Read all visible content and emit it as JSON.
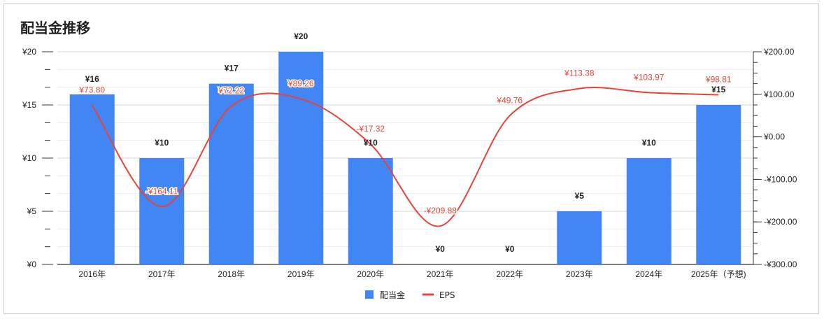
{
  "chart_data": {
    "type": "bar",
    "title": "配当金推移",
    "categories": [
      "2016年",
      "2017年",
      "2018年",
      "2019年",
      "2020年",
      "2021年",
      "2022年",
      "2023年",
      "2024年",
      "2025年（予想)"
    ],
    "series": [
      {
        "name": "配当金",
        "type": "bar",
        "axis": "left",
        "color": "#4285f4",
        "values": [
          16,
          10,
          17,
          20,
          10,
          0,
          0,
          5,
          10,
          15
        ],
        "labels": [
          "¥16",
          "¥10",
          "¥17",
          "¥20",
          "¥10",
          "¥0",
          "¥0",
          "¥5",
          "¥10",
          "¥15"
        ]
      },
      {
        "name": "EPS",
        "type": "line",
        "axis": "right",
        "color": "#ea4335",
        "smooth": true,
        "values": [
          73.8,
          -164.11,
          72.22,
          89.26,
          -17.32,
          -209.88,
          49.76,
          113.38,
          103.97,
          98.81
        ],
        "labels": [
          "¥73.80",
          "-¥164.11",
          "¥72.22",
          "¥89.26",
          "-¥17.32",
          "-¥209.88",
          "¥49.76",
          "¥113.38",
          "¥103.97",
          "¥98.81"
        ]
      }
    ],
    "y_left": {
      "ylim": [
        0,
        20
      ],
      "ticks": [
        0,
        5,
        10,
        15,
        20
      ],
      "tick_labels": [
        "¥0",
        "¥5",
        "¥10",
        "¥15",
        "¥20"
      ],
      "minor_step": 1.6667
    },
    "y_right": {
      "ylim": [
        -300,
        200
      ],
      "ticks": [
        -300,
        -200,
        -100,
        0,
        100,
        200
      ],
      "tick_labels": [
        "-¥300.00",
        "-¥200.00",
        "-¥100.00",
        "¥0.00",
        "¥100.00",
        "¥200.00"
      ]
    },
    "grid": true,
    "legend": {
      "position": "bottom",
      "entries": [
        "配当金",
        "EPS"
      ]
    }
  }
}
